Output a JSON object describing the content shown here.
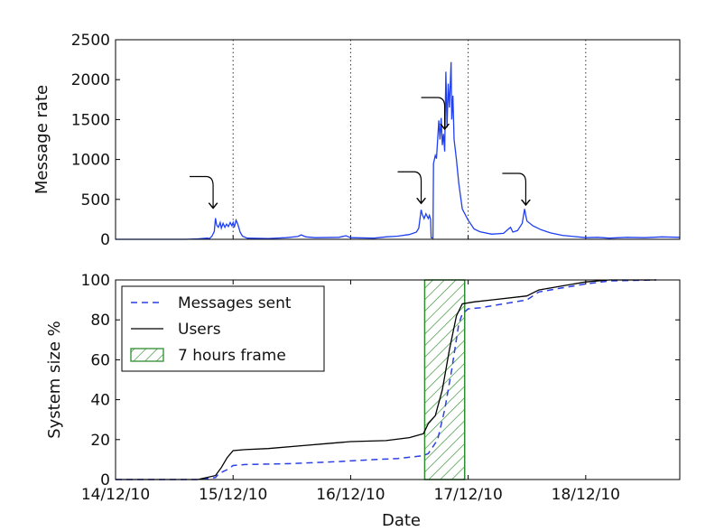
{
  "chart_data": [
    {
      "type": "line",
      "title": "",
      "xlabel": "",
      "ylabel": "Message rate",
      "xlim": [
        0,
        4.8
      ],
      "ylim": [
        0,
        2500
      ],
      "yticks": [
        0,
        500,
        1000,
        1500,
        2000,
        2500
      ],
      "x_gridlines": [
        "14/12/10",
        "15/12/10",
        "16/12/10",
        "17/12/10",
        "18/12/10"
      ],
      "grid": "vertical dotted",
      "x_unit": "days since 14/12/10",
      "series": [
        {
          "name": "",
          "color": "#1f3ff0",
          "points": [
            [
              0.0,
              0
            ],
            [
              0.6,
              0
            ],
            [
              0.7,
              6
            ],
            [
              0.78,
              15
            ],
            [
              0.8,
              10
            ],
            [
              0.82,
              40
            ],
            [
              0.84,
              100
            ],
            [
              0.85,
              265
            ],
            [
              0.86,
              180
            ],
            [
              0.875,
              150
            ],
            [
              0.89,
              210
            ],
            [
              0.9,
              140
            ],
            [
              0.915,
              200
            ],
            [
              0.93,
              150
            ],
            [
              0.945,
              190
            ],
            [
              0.96,
              160
            ],
            [
              0.975,
              210
            ],
            [
              0.99,
              170
            ],
            [
              1.0,
              210
            ],
            [
              1.01,
              150
            ],
            [
              1.025,
              240
            ],
            [
              1.04,
              190
            ],
            [
              1.06,
              90
            ],
            [
              1.08,
              40
            ],
            [
              1.12,
              15
            ],
            [
              1.3,
              10
            ],
            [
              1.45,
              20
            ],
            [
              1.55,
              35
            ],
            [
              1.58,
              55
            ],
            [
              1.62,
              30
            ],
            [
              1.7,
              20
            ],
            [
              1.9,
              25
            ],
            [
              1.96,
              45
            ],
            [
              2.0,
              20
            ],
            [
              2.2,
              15
            ],
            [
              2.3,
              30
            ],
            [
              2.4,
              40
            ],
            [
              2.5,
              60
            ],
            [
              2.56,
              90
            ],
            [
              2.58,
              140
            ],
            [
              2.6,
              370
            ],
            [
              2.61,
              310
            ],
            [
              2.625,
              260
            ],
            [
              2.64,
              320
            ],
            [
              2.66,
              260
            ],
            [
              2.67,
              300
            ],
            [
              2.68,
              250
            ],
            [
              2.685,
              20
            ],
            [
              2.7,
              15
            ],
            [
              2.705,
              950
            ],
            [
              2.72,
              1050
            ],
            [
              2.73,
              1010
            ],
            [
              2.75,
              1490
            ],
            [
              2.76,
              1250
            ],
            [
              2.77,
              1520
            ],
            [
              2.78,
              1180
            ],
            [
              2.79,
              1320
            ],
            [
              2.8,
              1100
            ],
            [
              2.81,
              2100
            ],
            [
              2.82,
              1400
            ],
            [
              2.83,
              1950
            ],
            [
              2.84,
              1650
            ],
            [
              2.855,
              2220
            ],
            [
              2.86,
              1500
            ],
            [
              2.87,
              1800
            ],
            [
              2.88,
              1250
            ],
            [
              2.9,
              1000
            ],
            [
              2.92,
              700
            ],
            [
              2.95,
              380
            ],
            [
              3.0,
              240
            ],
            [
              3.05,
              130
            ],
            [
              3.1,
              95
            ],
            [
              3.2,
              65
            ],
            [
              3.3,
              75
            ],
            [
              3.36,
              150
            ],
            [
              3.38,
              90
            ],
            [
              3.42,
              110
            ],
            [
              3.46,
              200
            ],
            [
              3.48,
              380
            ],
            [
              3.49,
              300
            ],
            [
              3.5,
              230
            ],
            [
              3.55,
              170
            ],
            [
              3.62,
              120
            ],
            [
              3.7,
              80
            ],
            [
              3.8,
              50
            ],
            [
              3.9,
              35
            ],
            [
              4.0,
              20
            ],
            [
              4.1,
              25
            ],
            [
              4.2,
              15
            ],
            [
              4.35,
              25
            ],
            [
              4.5,
              20
            ],
            [
              4.65,
              30
            ],
            [
              4.8,
              25
            ]
          ]
        }
      ],
      "annotations": [
        "arrow near 15/12/10 peak",
        "arrow near pre-peak",
        "arrow at main peak",
        "arrow at secondary peak"
      ]
    },
    {
      "type": "line",
      "title": "",
      "xlabel": "Date",
      "ylabel": "System size %",
      "xlim": [
        0,
        4.8
      ],
      "ylim": [
        0,
        100
      ],
      "yticks": [
        0,
        20,
        40,
        60,
        80,
        100
      ],
      "xtick_labels": [
        "14/12/10",
        "15/12/10",
        "16/12/10",
        "17/12/10",
        "18/12/10"
      ],
      "legend": "top-left",
      "series": [
        {
          "name": "Messages sent",
          "style": "dashed",
          "color": "#2a3fe8",
          "points": [
            [
              0.0,
              0
            ],
            [
              0.7,
              0
            ],
            [
              0.85,
              1
            ],
            [
              0.88,
              3
            ],
            [
              0.95,
              5
            ],
            [
              1.0,
              7
            ],
            [
              1.1,
              7.5
            ],
            [
              1.5,
              8
            ],
            [
              1.9,
              9
            ],
            [
              2.2,
              10
            ],
            [
              2.4,
              10.5
            ],
            [
              2.55,
              11.5
            ],
            [
              2.62,
              12
            ],
            [
              2.66,
              13
            ],
            [
              2.74,
              20
            ],
            [
              2.8,
              35
            ],
            [
              2.86,
              55
            ],
            [
              2.92,
              78
            ],
            [
              2.95,
              83
            ],
            [
              3.0,
              85.5
            ],
            [
              3.1,
              86
            ],
            [
              3.3,
              88
            ],
            [
              3.5,
              90
            ],
            [
              3.6,
              94
            ],
            [
              3.8,
              96
            ],
            [
              4.0,
              98
            ],
            [
              4.2,
              99.5
            ],
            [
              4.6,
              100
            ]
          ]
        },
        {
          "name": "Users",
          "style": "solid",
          "color": "#000000",
          "points": [
            [
              0.0,
              0
            ],
            [
              0.7,
              0
            ],
            [
              0.85,
              2
            ],
            [
              0.9,
              6
            ],
            [
              0.95,
              11
            ],
            [
              1.0,
              14.5
            ],
            [
              1.1,
              15
            ],
            [
              1.3,
              15.5
            ],
            [
              1.6,
              17
            ],
            [
              1.8,
              18
            ],
            [
              2.0,
              19
            ],
            [
              2.3,
              19.5
            ],
            [
              2.5,
              21
            ],
            [
              2.62,
              23
            ],
            [
              2.66,
              28
            ],
            [
              2.72,
              32
            ],
            [
              2.78,
              45
            ],
            [
              2.84,
              65
            ],
            [
              2.9,
              82
            ],
            [
              2.95,
              88
            ],
            [
              3.05,
              89
            ],
            [
              3.2,
              90
            ],
            [
              3.5,
              92
            ],
            [
              3.6,
              95
            ],
            [
              3.8,
              97
            ],
            [
              4.0,
              99
            ],
            [
              4.2,
              100
            ],
            [
              4.6,
              100
            ]
          ]
        }
      ],
      "shaded_regions": [
        {
          "name": "7 hours frame",
          "x0": 2.63,
          "x1": 2.97,
          "hatch": "diagonal",
          "color": "#2e8b2e"
        }
      ]
    }
  ]
}
